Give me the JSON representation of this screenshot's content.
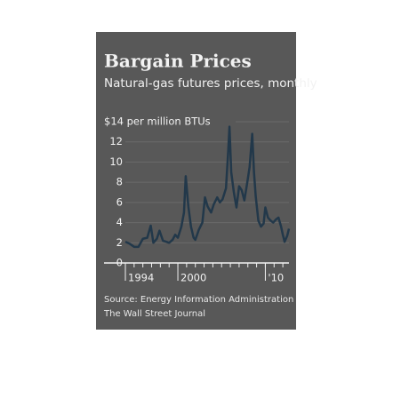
{
  "chart_data": {
    "type": "line",
    "title": "Bargain Prices",
    "subtitle": "Natural-gas futures prices, monthly",
    "source": "Source: Energy Information Administration",
    "credit": "The Wall Street Journal",
    "x": [
      1994,
      1994.5,
      1995,
      1995.5,
      1996,
      1996.5,
      1996.9,
      1997.2,
      1997.6,
      1997.9,
      1998.3,
      1998.7,
      1999,
      1999.4,
      1999.7,
      2000,
      2000.4,
      2000.7,
      2000.9,
      2001.2,
      2001.5,
      2001.8,
      2002,
      2002.4,
      2002.8,
      2003.1,
      2003.4,
      2003.8,
      2004.1,
      2004.5,
      2004.8,
      2005.1,
      2005.5,
      2005.75,
      2005.9,
      2006.1,
      2006.4,
      2006.7,
      2007,
      2007.3,
      2007.6,
      2007.9,
      2008.2,
      2008.5,
      2008.7,
      2008.9,
      2009.2,
      2009.5,
      2009.8,
      2010,
      2010.3,
      2010.6,
      2010.9,
      2011.2,
      2011.5,
      2011.8,
      2012,
      2012.2,
      2012.5,
      2012.7
    ],
    "series": [
      {
        "name": "Natural-gas futures",
        "color": "#22384a",
        "values": [
          2.1,
          1.9,
          1.6,
          1.6,
          2.4,
          2.5,
          3.7,
          2.0,
          2.4,
          3.2,
          2.2,
          2.1,
          2.0,
          2.3,
          2.8,
          2.5,
          3.6,
          5.0,
          8.6,
          5.6,
          3.6,
          2.5,
          2.3,
          3.3,
          4.0,
          6.5,
          5.6,
          5.0,
          5.8,
          6.5,
          6.0,
          6.3,
          7.4,
          11.0,
          13.5,
          9.0,
          7.0,
          5.5,
          7.6,
          7.2,
          6.2,
          7.8,
          9.5,
          12.8,
          9.0,
          6.6,
          4.2,
          3.6,
          3.9,
          5.5,
          4.5,
          4.2,
          4.0,
          4.3,
          4.5,
          3.6,
          2.8,
          2.1,
          2.7,
          3.4
        ]
      }
    ],
    "xlim": [
      1994,
      2012.7
    ],
    "xticks": [
      1994,
      2000,
      {
        "value": 2010,
        "label": "'10"
      }
    ],
    "ylim": [
      0,
      14
    ],
    "yticks": [
      0,
      2,
      4,
      6,
      8,
      10,
      12,
      {
        "value": 14,
        "label": "$14 per million BTUs"
      }
    ],
    "grid": true
  }
}
